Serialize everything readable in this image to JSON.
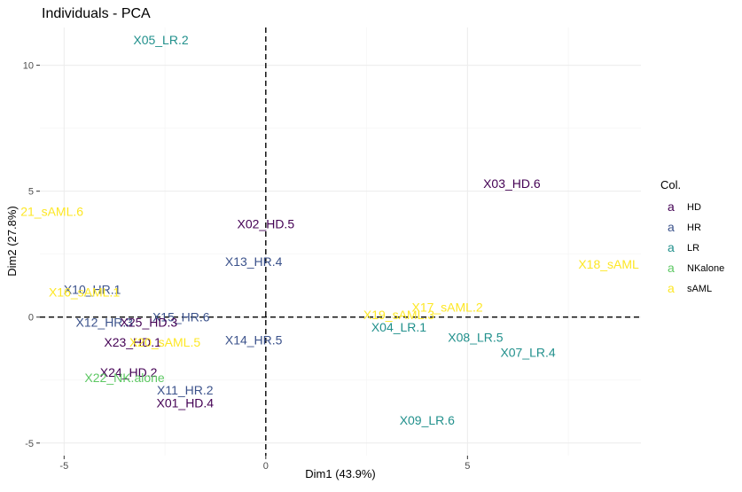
{
  "chart_data": {
    "type": "scatter",
    "title": "Individuals - PCA",
    "xlabel": "Dim1 (43.9%)",
    "ylabel": "Dim2 (27.8%)",
    "xlim": [
      -5.6,
      9.3
    ],
    "ylim": [
      -5.5,
      11.5
    ],
    "xticks": [
      -5,
      0,
      5
    ],
    "yticks": [
      -5,
      0,
      5,
      10
    ],
    "tick_labels_x": [
      "-5",
      "0",
      "5"
    ],
    "tick_labels_y": [
      "-5",
      "0",
      "5",
      "10"
    ],
    "grid": true,
    "reference_lines": {
      "x": 0,
      "y": 0,
      "style": "dashed"
    },
    "legend": {
      "title": "Col.",
      "position": "right",
      "glyph": "a",
      "entries": [
        {
          "name": "HD",
          "color": "#440154"
        },
        {
          "name": "HR",
          "color": "#3b528b"
        },
        {
          "name": "LR",
          "color": "#21908c"
        },
        {
          "name": "NKalone",
          "color": "#5dc863"
        },
        {
          "name": "sAML",
          "color": "#fde725"
        }
      ]
    },
    "points": [
      {
        "label": "X05_LR.2",
        "group": "LR",
        "x": -2.6,
        "y": 11.0
      },
      {
        "label": "X03_HD.6",
        "group": "HD",
        "x": 6.1,
        "y": 5.3
      },
      {
        "label": "21_sAML.6",
        "group": "sAML",
        "x": -5.3,
        "y": 4.2
      },
      {
        "label": "X02_HD.5",
        "group": "HD",
        "x": 0.0,
        "y": 3.7
      },
      {
        "label": "X13_HR.4",
        "group": "HR",
        "x": -0.3,
        "y": 2.2
      },
      {
        "label": "X18_sAML",
        "group": "sAML",
        "x": 8.5,
        "y": 2.1
      },
      {
        "label": "X10_HR.1",
        "group": "HR",
        "x": -4.3,
        "y": 1.1
      },
      {
        "label": "X16_sAML.1",
        "group": "sAML",
        "x": -4.5,
        "y": 1.0
      },
      {
        "label": "X17_sAML.2",
        "group": "sAML",
        "x": 4.5,
        "y": 0.4
      },
      {
        "label": "X19_sAML.3",
        "group": "sAML",
        "x": 3.3,
        "y": 0.1
      },
      {
        "label": "X15_HR.6",
        "group": "HR",
        "x": -2.1,
        "y": 0.0
      },
      {
        "label": "X12_HR.3",
        "group": "HR",
        "x": -4.0,
        "y": -0.2
      },
      {
        "label": "X25_HD.3",
        "group": "HD",
        "x": -2.9,
        "y": -0.2
      },
      {
        "label": "X04_LR.1",
        "group": "LR",
        "x": 3.3,
        "y": -0.4
      },
      {
        "label": "X08_LR.5",
        "group": "LR",
        "x": 5.2,
        "y": -0.8
      },
      {
        "label": "X14_HR.5",
        "group": "HR",
        "x": -0.3,
        "y": -0.9
      },
      {
        "label": "X23_HD.1",
        "group": "HD",
        "x": -3.3,
        "y": -1.0
      },
      {
        "label": "X20_sAML.5",
        "group": "sAML",
        "x": -2.5,
        "y": -1.0
      },
      {
        "label": "X07_LR.4",
        "group": "LR",
        "x": 6.5,
        "y": -1.4
      },
      {
        "label": "X24_HD.2",
        "group": "HD",
        "x": -3.4,
        "y": -2.2
      },
      {
        "label": "X22_NK.alone",
        "group": "NKalone",
        "x": -3.5,
        "y": -2.4
      },
      {
        "label": "X11_HR.2",
        "group": "HR",
        "x": -2.0,
        "y": -2.9
      },
      {
        "label": "X01_HD.4",
        "group": "HD",
        "x": -2.0,
        "y": -3.4
      },
      {
        "label": "X09_LR.6",
        "group": "LR",
        "x": 4.0,
        "y": -4.1
      }
    ]
  }
}
